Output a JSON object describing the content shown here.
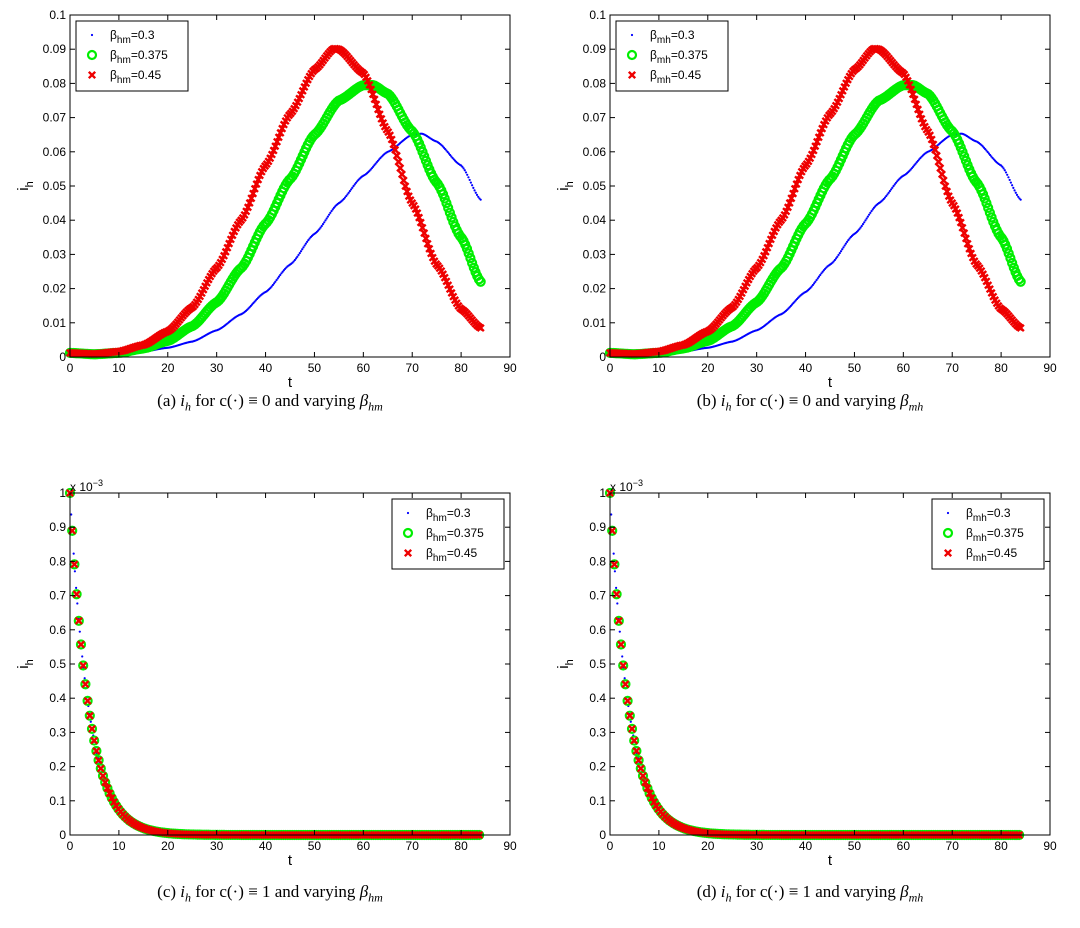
{
  "chart_data": [
    {
      "id": "a",
      "type": "scatter",
      "caption": "(a) i_h for c(·) ≡ 0 and varying β_hm",
      "caption_parts": {
        "label": "(a)",
        "var": "i",
        "var_sub": "h",
        "mid": "for c(·) ≡ 0 and varying",
        "beta_sub": "hm"
      },
      "xlabel": "t",
      "ylabel": "i_h",
      "xlim": [
        0,
        90
      ],
      "ylim": [
        0,
        0.1
      ],
      "xticks": [
        "0",
        "10",
        "20",
        "30",
        "40",
        "50",
        "60",
        "70",
        "80",
        "90"
      ],
      "yticks": [
        "0",
        "0.01",
        "0.02",
        "0.03",
        "0.04",
        "0.05",
        "0.06",
        "0.07",
        "0.08",
        "0.09",
        "0.1"
      ],
      "exponent": "",
      "legend_position": "top-left",
      "series": [
        {
          "name": "β_hm=0.3",
          "sub": "hm",
          "value": "=0.3",
          "color": "#0000ff",
          "marker": "dot",
          "points": [
            [
              0,
              0.0012
            ],
            [
              5,
              0.0007
            ],
            [
              10,
              0.0009
            ],
            [
              15,
              0.0016
            ],
            [
              20,
              0.0027
            ],
            [
              25,
              0.0045
            ],
            [
              30,
              0.0078
            ],
            [
              35,
              0.0125
            ],
            [
              40,
              0.019
            ],
            [
              45,
              0.027
            ],
            [
              50,
              0.036
            ],
            [
              55,
              0.045
            ],
            [
              60,
              0.053
            ],
            [
              65,
              0.06
            ],
            [
              70,
              0.065
            ],
            [
              72,
              0.0653
            ],
            [
              75,
              0.063
            ],
            [
              80,
              0.056
            ],
            [
              84,
              0.046
            ]
          ]
        },
        {
          "name": "β_hm=0.375",
          "sub": "hm",
          "value": "=0.375",
          "color": "#00ee00",
          "marker": "circle",
          "points": [
            [
              0,
              0.0012
            ],
            [
              5,
              0.0008
            ],
            [
              10,
              0.0012
            ],
            [
              15,
              0.0025
            ],
            [
              20,
              0.0047
            ],
            [
              25,
              0.009
            ],
            [
              30,
              0.016
            ],
            [
              35,
              0.026
            ],
            [
              40,
              0.039
            ],
            [
              45,
              0.052
            ],
            [
              50,
              0.065
            ],
            [
              55,
              0.075
            ],
            [
              60,
              0.0795
            ],
            [
              62,
              0.0795
            ],
            [
              65,
              0.077
            ],
            [
              70,
              0.066
            ],
            [
              75,
              0.051
            ],
            [
              80,
              0.035
            ],
            [
              84,
              0.022
            ]
          ]
        },
        {
          "name": "β_hm=0.45",
          "sub": "hm",
          "value": "=0.45",
          "color": "#ee0000",
          "marker": "x",
          "points": [
            [
              0,
              0.0012
            ],
            [
              5,
              0.0009
            ],
            [
              10,
              0.0016
            ],
            [
              15,
              0.0035
            ],
            [
              20,
              0.0075
            ],
            [
              25,
              0.0145
            ],
            [
              30,
              0.026
            ],
            [
              35,
              0.04
            ],
            [
              40,
              0.056
            ],
            [
              45,
              0.071
            ],
            [
              50,
              0.084
            ],
            [
              54,
              0.0902
            ],
            [
              55,
              0.09
            ],
            [
              60,
              0.083
            ],
            [
              65,
              0.066
            ],
            [
              70,
              0.045
            ],
            [
              75,
              0.027
            ],
            [
              80,
              0.014
            ],
            [
              84,
              0.0085
            ]
          ]
        }
      ]
    },
    {
      "id": "b",
      "type": "scatter",
      "caption": "(b) i_h for c(·) ≡ 0 and varying β_mh",
      "caption_parts": {
        "label": "(b)",
        "var": "i",
        "var_sub": "h",
        "mid": "for c(·) ≡ 0 and varying",
        "beta_sub": "mh"
      },
      "xlabel": "t",
      "ylabel": "i_h",
      "xlim": [
        0,
        90
      ],
      "ylim": [
        0,
        0.1
      ],
      "xticks": [
        "0",
        "10",
        "20",
        "30",
        "40",
        "50",
        "60",
        "70",
        "80",
        "90"
      ],
      "yticks": [
        "0",
        "0.01",
        "0.02",
        "0.03",
        "0.04",
        "0.05",
        "0.06",
        "0.07",
        "0.08",
        "0.09",
        "0.1"
      ],
      "exponent": "",
      "legend_position": "top-left",
      "series": [
        {
          "name": "β_mh=0.3",
          "sub": "mh",
          "value": "=0.3",
          "color": "#0000ff",
          "marker": "dot",
          "points": [
            [
              0,
              0.0012
            ],
            [
              5,
              0.0007
            ],
            [
              10,
              0.0009
            ],
            [
              15,
              0.0016
            ],
            [
              20,
              0.0027
            ],
            [
              25,
              0.0045
            ],
            [
              30,
              0.0078
            ],
            [
              35,
              0.0125
            ],
            [
              40,
              0.019
            ],
            [
              45,
              0.027
            ],
            [
              50,
              0.036
            ],
            [
              55,
              0.045
            ],
            [
              60,
              0.053
            ],
            [
              65,
              0.06
            ],
            [
              70,
              0.065
            ],
            [
              72,
              0.0653
            ],
            [
              75,
              0.063
            ],
            [
              80,
              0.056
            ],
            [
              84,
              0.046
            ]
          ]
        },
        {
          "name": "β_mh=0.375",
          "sub": "mh",
          "value": "=0.375",
          "color": "#00ee00",
          "marker": "circle",
          "points": [
            [
              0,
              0.0012
            ],
            [
              5,
              0.0008
            ],
            [
              10,
              0.0012
            ],
            [
              15,
              0.0025
            ],
            [
              20,
              0.0047
            ],
            [
              25,
              0.009
            ],
            [
              30,
              0.016
            ],
            [
              35,
              0.026
            ],
            [
              40,
              0.039
            ],
            [
              45,
              0.052
            ],
            [
              50,
              0.065
            ],
            [
              55,
              0.075
            ],
            [
              60,
              0.0795
            ],
            [
              62,
              0.0795
            ],
            [
              65,
              0.077
            ],
            [
              70,
              0.066
            ],
            [
              75,
              0.051
            ],
            [
              80,
              0.035
            ],
            [
              84,
              0.022
            ]
          ]
        },
        {
          "name": "β_mh=0.45",
          "sub": "mh",
          "value": "=0.45",
          "color": "#ee0000",
          "marker": "x",
          "points": [
            [
              0,
              0.0012
            ],
            [
              5,
              0.0009
            ],
            [
              10,
              0.0016
            ],
            [
              15,
              0.0035
            ],
            [
              20,
              0.0075
            ],
            [
              25,
              0.0145
            ],
            [
              30,
              0.026
            ],
            [
              35,
              0.04
            ],
            [
              40,
              0.056
            ],
            [
              45,
              0.071
            ],
            [
              50,
              0.084
            ],
            [
              54,
              0.0902
            ],
            [
              55,
              0.09
            ],
            [
              60,
              0.083
            ],
            [
              65,
              0.066
            ],
            [
              70,
              0.045
            ],
            [
              75,
              0.027
            ],
            [
              80,
              0.014
            ],
            [
              84,
              0.0085
            ]
          ]
        }
      ]
    },
    {
      "id": "c",
      "type": "scatter",
      "caption": "(c) i_h for c(·) ≡ 1 and varying β_hm",
      "caption_parts": {
        "label": "(c)",
        "var": "i",
        "var_sub": "h",
        "mid": "for c(·) ≡ 1 and varying",
        "beta_sub": "hm"
      },
      "xlabel": "t",
      "ylabel": "i_h",
      "xlim": [
        0,
        90
      ],
      "ylim": [
        0,
        1
      ],
      "xticks": [
        "0",
        "10",
        "20",
        "30",
        "40",
        "50",
        "60",
        "70",
        "80",
        "90"
      ],
      "yticks": [
        "0",
        "0.1",
        "0.2",
        "0.3",
        "0.4",
        "0.5",
        "0.6",
        "0.7",
        "0.8",
        "0.9",
        "1"
      ],
      "exponent": "x 10",
      "exponent_power": "−3",
      "legend_position": "top-right",
      "series": [
        {
          "name": "β_hm=0.3",
          "sub": "hm",
          "value": "=0.3",
          "color": "#0000ff",
          "marker": "dot",
          "decay": {
            "a": 1.0,
            "k": 0.26,
            "tmax": 84
          }
        },
        {
          "name": "β_hm=0.375",
          "sub": "hm",
          "value": "=0.375",
          "color": "#00ee00",
          "marker": "circle",
          "decay": {
            "a": 1.0,
            "k": 0.26,
            "tmax": 84
          }
        },
        {
          "name": "β_hm=0.45",
          "sub": "hm",
          "value": "=0.45",
          "color": "#ee0000",
          "marker": "x",
          "decay": {
            "a": 1.0,
            "k": 0.26,
            "tmax": 84
          }
        }
      ]
    },
    {
      "id": "d",
      "type": "scatter",
      "caption": "(d) i_h for c(·) ≡ 1 and varying β_mh",
      "caption_parts": {
        "label": "(d)",
        "var": "i",
        "var_sub": "h",
        "mid": "for c(·) ≡ 1 and varying",
        "beta_sub": "mh"
      },
      "xlabel": "t",
      "ylabel": "i_h",
      "xlim": [
        0,
        90
      ],
      "ylim": [
        0,
        1
      ],
      "xticks": [
        "0",
        "10",
        "20",
        "30",
        "40",
        "50",
        "60",
        "70",
        "80",
        "90"
      ],
      "yticks": [
        "0",
        "0.1",
        "0.2",
        "0.3",
        "0.4",
        "0.5",
        "0.6",
        "0.7",
        "0.8",
        "0.9",
        "1"
      ],
      "exponent": "x 10",
      "exponent_power": "−3",
      "legend_position": "top-right",
      "series": [
        {
          "name": "β_mh=0.3",
          "sub": "mh",
          "value": "=0.3",
          "color": "#0000ff",
          "marker": "dot",
          "decay": {
            "a": 1.0,
            "k": 0.26,
            "tmax": 84
          }
        },
        {
          "name": "β_mh=0.375",
          "sub": "mh",
          "value": "=0.375",
          "color": "#00ee00",
          "marker": "circle",
          "decay": {
            "a": 1.0,
            "k": 0.26,
            "tmax": 84
          }
        },
        {
          "name": "β_mh=0.45",
          "sub": "mh",
          "value": "=0.45",
          "color": "#ee0000",
          "marker": "x",
          "decay": {
            "a": 1.0,
            "k": 0.26,
            "tmax": 84
          }
        }
      ]
    }
  ]
}
